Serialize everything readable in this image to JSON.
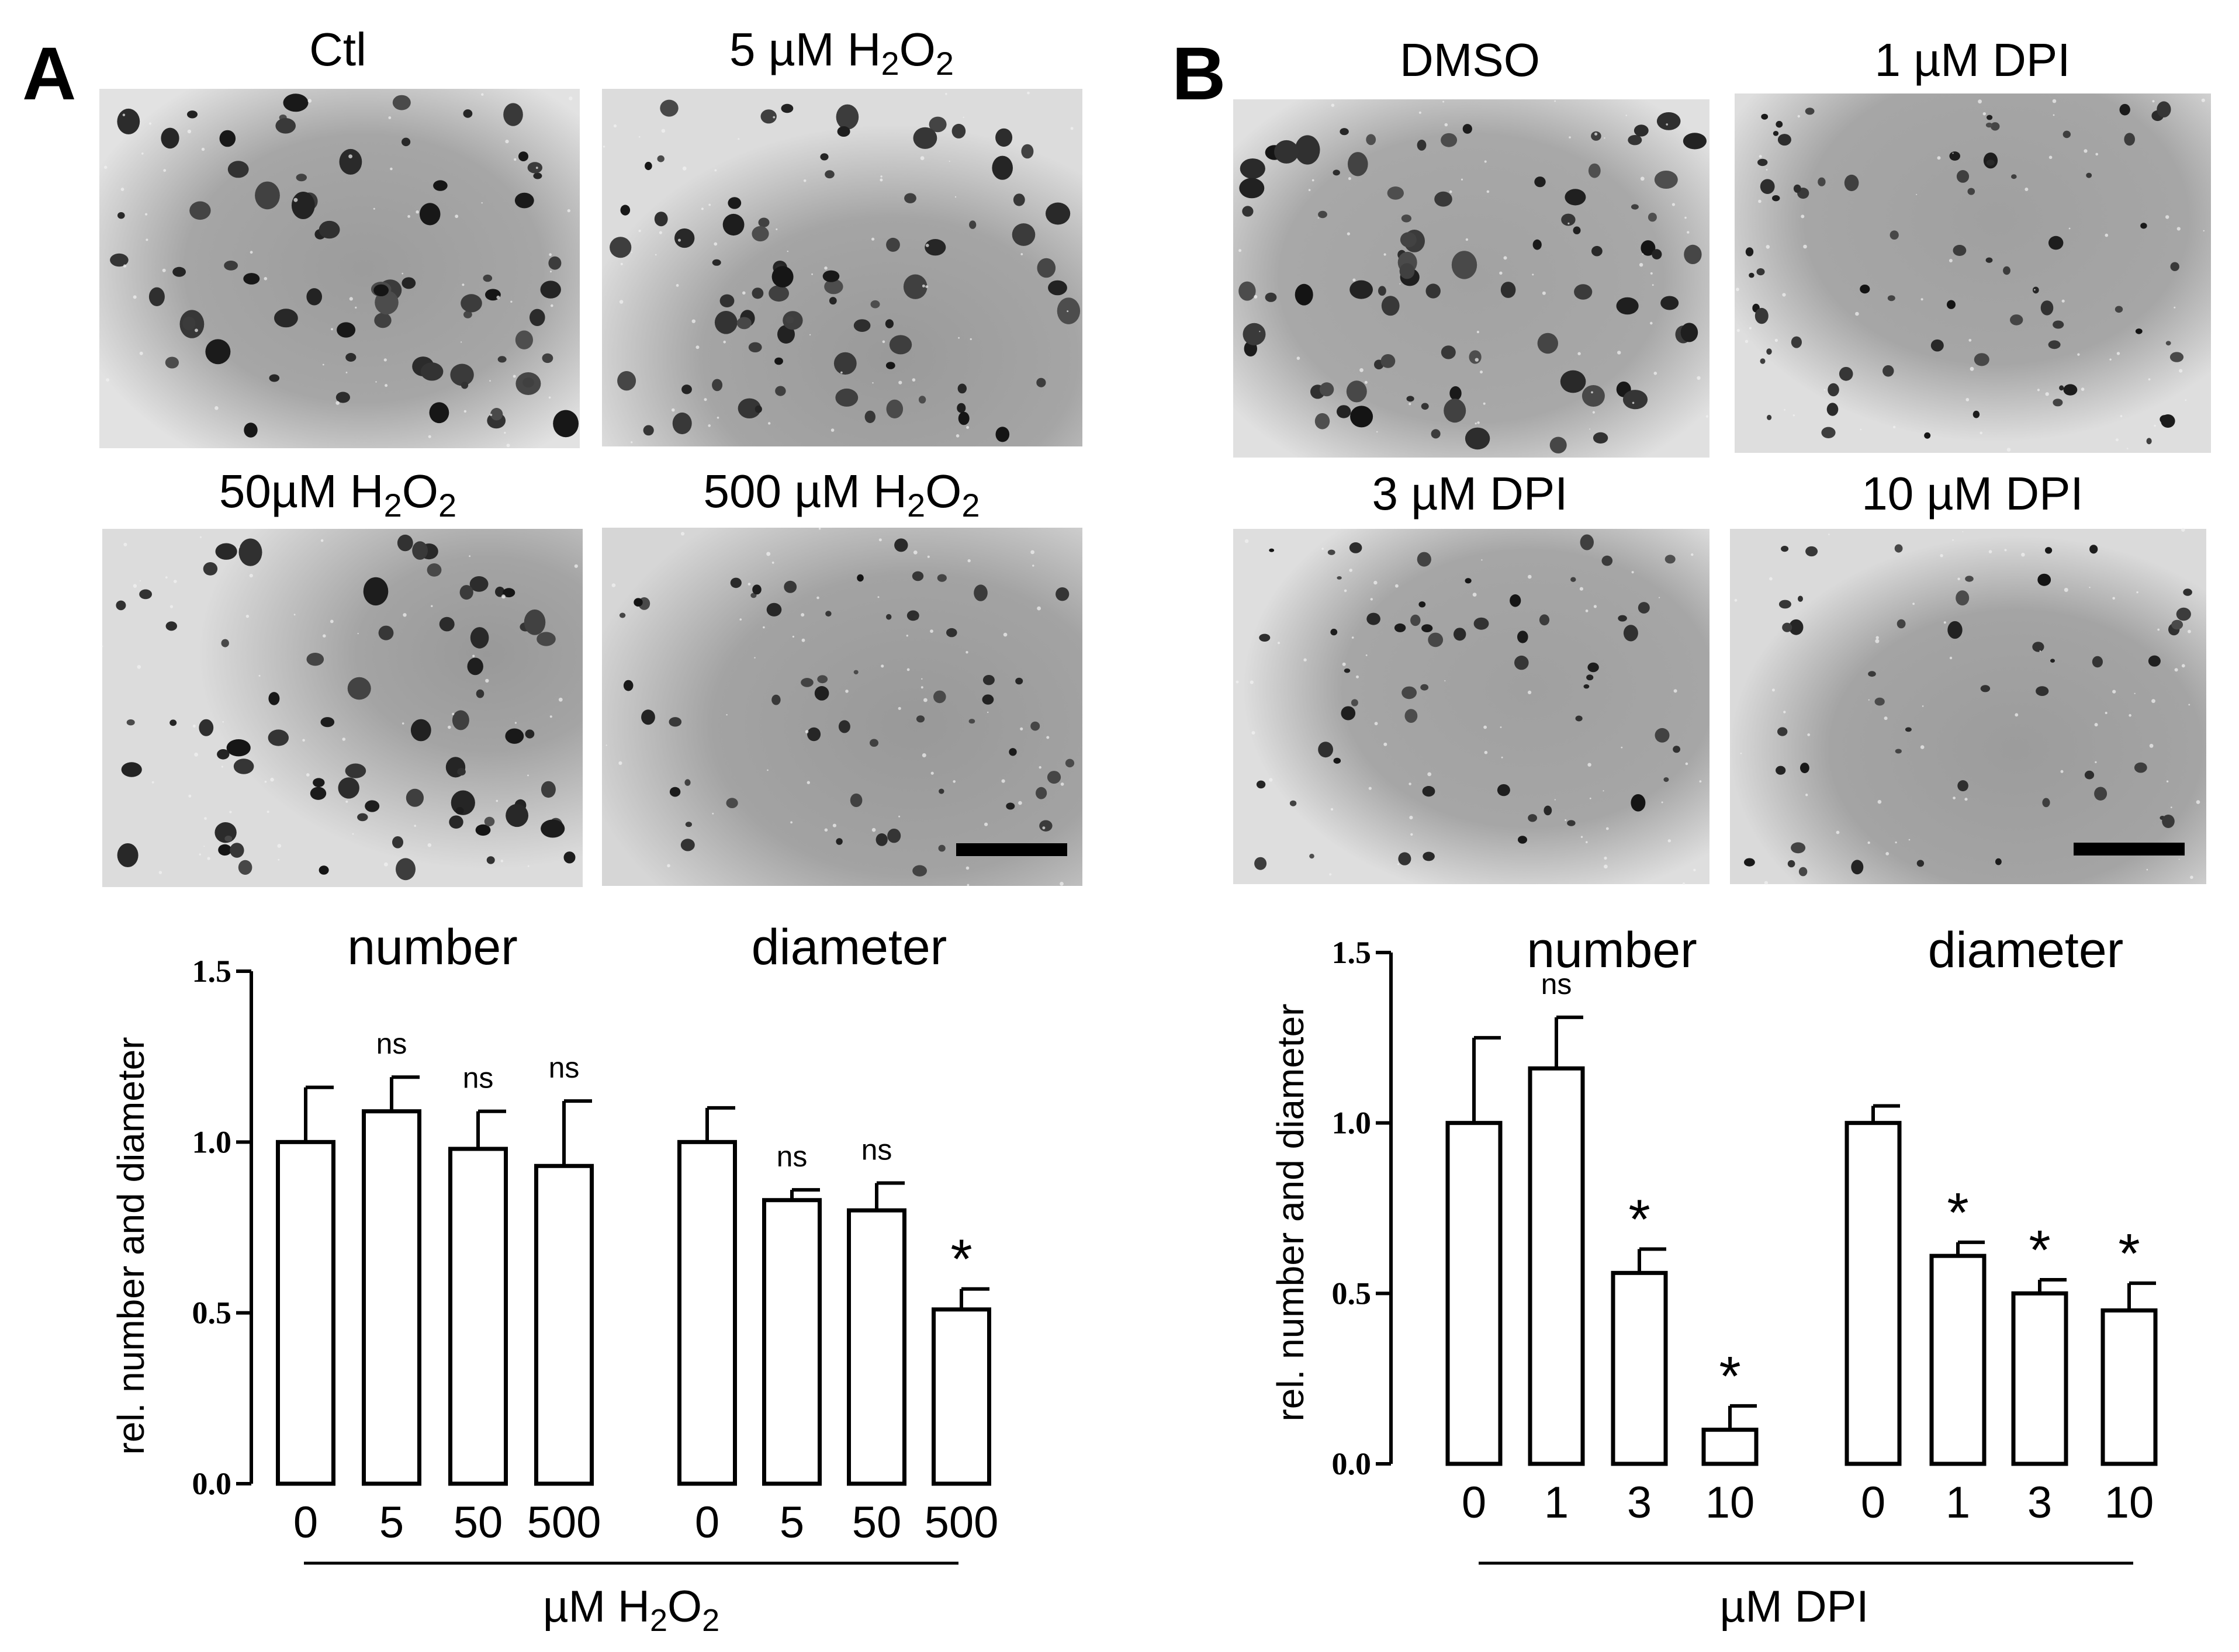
{
  "panels": [
    {
      "letter": "A",
      "micrographs": [
        {
          "caption_parts": [
            "Ctl"
          ]
        },
        {
          "caption_parts": [
            "5 µM H",
            "2",
            "O",
            "2"
          ]
        },
        {
          "caption_parts": [
            "50µM H",
            "2",
            "O",
            "2"
          ]
        },
        {
          "caption_parts": [
            "500 µM H",
            "2",
            "O",
            "2"
          ]
        }
      ],
      "xlabel_parts": [
        "µM H",
        "2",
        "O",
        "2"
      ]
    },
    {
      "letter": "B",
      "micrographs": [
        {
          "caption_parts": [
            "DMSO"
          ]
        },
        {
          "caption_parts": [
            "1 µM DPI"
          ]
        },
        {
          "caption_parts": [
            "3 µM DPI"
          ]
        },
        {
          "caption_parts": [
            "10 µM DPI"
          ]
        }
      ],
      "xlabel_parts": [
        "µM DPI"
      ]
    }
  ],
  "chart_data": [
    {
      "type": "bar",
      "panel": "A",
      "ylabel": "rel. number and diameter",
      "ylim": [
        0,
        1.5
      ],
      "yticks": [
        "0.0",
        "0.5",
        "1.0",
        "1.5"
      ],
      "groups": [
        {
          "title": "number",
          "categories": [
            "0",
            "5",
            "50",
            "500"
          ],
          "values": [
            1.0,
            1.09,
            0.98,
            0.93
          ],
          "errors": [
            0.16,
            0.1,
            0.11,
            0.19
          ],
          "annotations": [
            "",
            "ns",
            "ns",
            "ns"
          ]
        },
        {
          "title": "diameter",
          "categories": [
            "0",
            "5",
            "50",
            "500"
          ],
          "values": [
            1.0,
            0.83,
            0.8,
            0.51
          ],
          "errors": [
            0.1,
            0.03,
            0.08,
            0.06
          ],
          "annotations": [
            "",
            "ns",
            "ns",
            "*"
          ]
        }
      ]
    },
    {
      "type": "bar",
      "panel": "B",
      "ylabel": "rel. number and diameter",
      "ylim": [
        0,
        1.5
      ],
      "yticks": [
        "0.0",
        "0.5",
        "1.0",
        "1.5"
      ],
      "groups": [
        {
          "title": "number",
          "categories": [
            "0",
            "1",
            "3",
            "10"
          ],
          "values": [
            1.0,
            1.16,
            0.56,
            0.1
          ],
          "errors": [
            0.25,
            0.15,
            0.07,
            0.07
          ],
          "annotations": [
            "",
            "ns",
            "*",
            "*"
          ]
        },
        {
          "title": "diameter",
          "categories": [
            "0",
            "1",
            "3",
            "10"
          ],
          "values": [
            1.0,
            0.61,
            0.5,
            0.45
          ],
          "errors": [
            0.05,
            0.04,
            0.04,
            0.08
          ],
          "annotations": [
            "",
            "*",
            "*",
            "*"
          ]
        }
      ]
    }
  ]
}
